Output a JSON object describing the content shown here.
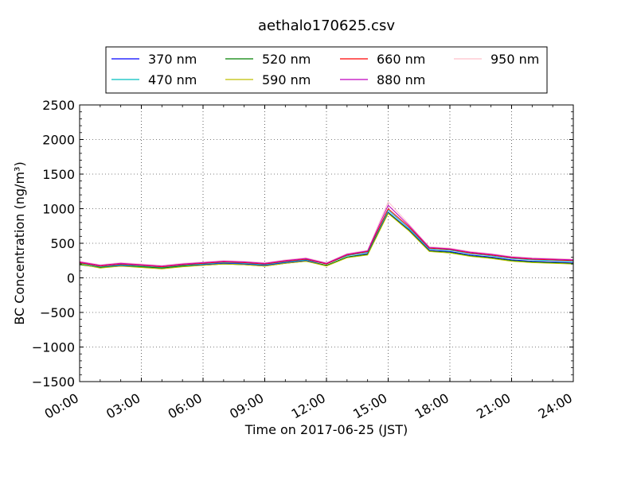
{
  "chart_data": {
    "type": "line",
    "title": "aethalo170625.csv",
    "xlabel": "Time on 2017-06-25 (JST)",
    "ylabel": "BC Concentration (ng/m³)",
    "xlim": [
      "2017-06-25 00:00",
      "2017-06-26 00:00"
    ],
    "ylim": [
      -1500,
      2500
    ],
    "x_ticks": [
      "00:00",
      "03:00",
      "06:00",
      "09:00",
      "12:00",
      "15:00",
      "18:00",
      "21:00",
      "24:00"
    ],
    "y_ticks": [
      -1500,
      -1000,
      -500,
      0,
      500,
      1000,
      1500,
      2000,
      2500
    ],
    "grid": true,
    "legend_position": "top-center",
    "x_unit": "hours since 00:00 JST",
    "series": [
      {
        "name": "370 nm",
        "color": "#0000ff",
        "x": [
          0,
          1,
          2,
          3,
          4,
          5,
          6,
          7,
          8,
          9,
          10,
          11,
          12,
          13,
          14,
          15,
          16,
          17,
          18,
          19,
          20,
          21,
          22,
          23,
          24
        ],
        "values": [
          200,
          150,
          180,
          160,
          140,
          170,
          190,
          210,
          200,
          180,
          220,
          250,
          180,
          300,
          350,
          950,
          700,
          400,
          380,
          330,
          300,
          260,
          240,
          230,
          220
        ]
      },
      {
        "name": "470 nm",
        "color": "#00bfbf",
        "x": [
          0,
          1,
          2,
          3,
          4,
          5,
          6,
          7,
          8,
          9,
          10,
          11,
          12,
          13,
          14,
          15,
          16,
          17,
          18,
          19,
          20,
          21,
          22,
          23,
          24
        ],
        "values": [
          210,
          160,
          190,
          170,
          150,
          180,
          200,
          220,
          210,
          190,
          230,
          260,
          200,
          320,
          370,
          980,
          720,
          420,
          400,
          350,
          320,
          280,
          260,
          250,
          240
        ]
      },
      {
        "name": "520 nm",
        "color": "#008000",
        "x": [
          0,
          1,
          2,
          3,
          4,
          5,
          6,
          7,
          8,
          9,
          10,
          11,
          12,
          13,
          14,
          15,
          16,
          17,
          18,
          19,
          20,
          21,
          22,
          23,
          24
        ],
        "values": [
          190,
          150,
          170,
          160,
          140,
          170,
          180,
          200,
          190,
          170,
          210,
          240,
          180,
          300,
          340,
          940,
          690,
          390,
          370,
          320,
          290,
          250,
          230,
          220,
          210
        ]
      },
      {
        "name": "590 nm",
        "color": "#bfbf00",
        "x": [
          0,
          1,
          2,
          3,
          4,
          5,
          6,
          7,
          8,
          9,
          10,
          11,
          12,
          13,
          14,
          15,
          16,
          17,
          18,
          19,
          20,
          21,
          22,
          23,
          24
        ],
        "values": [
          200,
          140,
          170,
          150,
          130,
          160,
          180,
          200,
          190,
          170,
          210,
          240,
          170,
          290,
          330,
          930,
          680,
          380,
          360,
          310,
          280,
          240,
          220,
          210,
          200
        ]
      },
      {
        "name": "660 nm",
        "color": "#ff0000",
        "x": [
          0,
          1,
          2,
          3,
          4,
          5,
          6,
          7,
          8,
          9,
          10,
          11,
          12,
          13,
          14,
          15,
          16,
          17,
          18,
          19,
          20,
          21,
          22,
          23,
          24
        ],
        "values": [
          220,
          170,
          200,
          180,
          160,
          190,
          210,
          230,
          220,
          200,
          240,
          270,
          200,
          330,
          380,
          1000,
          740,
          430,
          410,
          360,
          330,
          290,
          270,
          260,
          250
        ]
      },
      {
        "name": "880 nm",
        "color": "#bf00bf",
        "x": [
          0,
          1,
          2,
          3,
          4,
          5,
          6,
          7,
          8,
          9,
          10,
          11,
          12,
          13,
          14,
          15,
          16,
          17,
          18,
          19,
          20,
          21,
          22,
          23,
          24
        ],
        "values": [
          230,
          180,
          210,
          190,
          170,
          200,
          220,
          240,
          230,
          210,
          250,
          280,
          210,
          340,
          390,
          1050,
          760,
          440,
          420,
          370,
          340,
          300,
          280,
          270,
          260
        ]
      },
      {
        "name": "950 nm",
        "color": "#ffc0cb",
        "x": [
          0,
          1,
          2,
          3,
          4,
          5,
          6,
          7,
          8,
          9,
          10,
          11,
          12,
          13,
          14,
          15,
          16,
          17,
          18,
          19,
          20,
          21,
          22,
          23,
          24
        ],
        "values": [
          240,
          190,
          220,
          200,
          180,
          210,
          230,
          250,
          240,
          220,
          260,
          290,
          220,
          350,
          400,
          1100,
          780,
          450,
          430,
          380,
          350,
          310,
          290,
          280,
          270
        ]
      }
    ]
  }
}
